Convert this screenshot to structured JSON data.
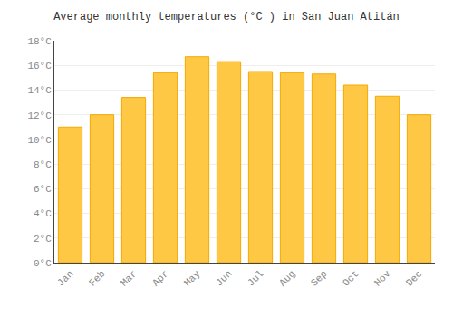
{
  "chart_data": {
    "type": "bar",
    "title": "Average monthly temperatures (°C ) in San Juan Atitán",
    "categories": [
      "Jan",
      "Feb",
      "Mar",
      "Apr",
      "May",
      "Jun",
      "Jul",
      "Aug",
      "Sep",
      "Oct",
      "Nov",
      "Dec"
    ],
    "values": [
      11.0,
      12.0,
      13.4,
      15.4,
      16.7,
      16.3,
      15.5,
      15.4,
      15.3,
      14.4,
      13.5,
      12.0
    ],
    "color": "#FFC844",
    "ylim": [
      0,
      18
    ],
    "yticks": [
      {
        "value": 0,
        "label": "0°C"
      },
      {
        "value": 2,
        "label": "2°C"
      },
      {
        "value": 4,
        "label": "4°C"
      },
      {
        "value": 6,
        "label": "6°C"
      },
      {
        "value": 8,
        "label": "8°C"
      },
      {
        "value": 10,
        "label": "10°C"
      },
      {
        "value": 12,
        "label": "12°C"
      },
      {
        "value": 14,
        "label": "14°C"
      },
      {
        "value": 16,
        "label": "16°C"
      },
      {
        "value": 18,
        "label": "18°C"
      }
    ],
    "grid": true
  }
}
